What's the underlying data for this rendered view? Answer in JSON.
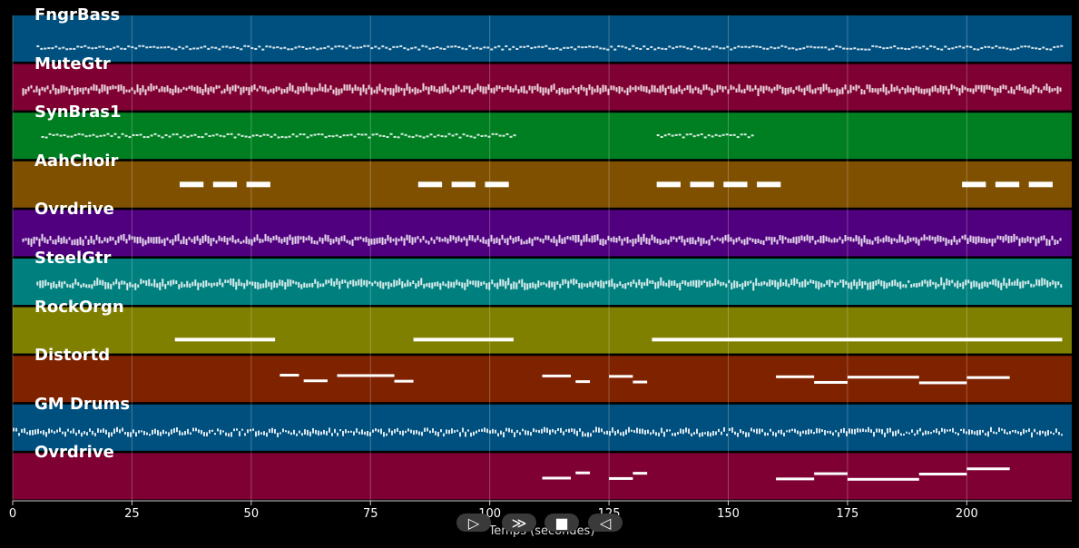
{
  "chart_data": {
    "type": "piano-roll",
    "xlabel": "Temps (secondes)",
    "xlim": [
      0,
      222
    ],
    "xticks": [
      0,
      25,
      50,
      75,
      100,
      125,
      150,
      175,
      200
    ],
    "grid": true,
    "tracks": [
      {
        "name": "FngrBass",
        "color": "#00507f",
        "pattern": "dots",
        "segments": [
          [
            5,
            220
          ]
        ],
        "level": 0.3
      },
      {
        "name": "MuteGtr",
        "color": "#7f0032",
        "pattern": "dense",
        "segments": [
          [
            2,
            220
          ]
        ],
        "level": 0.45
      },
      {
        "name": "SynBras1",
        "color": "#007f22",
        "pattern": "dots",
        "segments": [
          [
            6,
            105
          ],
          [
            135,
            155
          ]
        ],
        "level": 0.5
      },
      {
        "name": "AahChoir",
        "color": "#7f5000",
        "pattern": "blocks",
        "segments": [
          [
            35,
            40
          ],
          [
            42,
            47
          ],
          [
            49,
            54
          ],
          [
            85,
            90
          ],
          [
            92,
            97
          ],
          [
            99,
            104
          ],
          [
            135,
            140
          ],
          [
            142,
            147
          ],
          [
            149,
            154
          ],
          [
            156,
            161
          ],
          [
            199,
            204
          ],
          [
            206,
            211
          ],
          [
            213,
            218
          ]
        ],
        "level": 0.5
      },
      {
        "name": "Ovrdrive",
        "color": "#50007f",
        "pattern": "dense",
        "segments": [
          [
            2,
            220
          ]
        ],
        "level": 0.35
      },
      {
        "name": "SteelGtr",
        "color": "#007f7f",
        "pattern": "dense",
        "segments": [
          [
            5,
            220
          ]
        ],
        "level": 0.45
      },
      {
        "name": "RockOrgn",
        "color": "#7f7f00",
        "pattern": "bars",
        "segments": [
          [
            34,
            55
          ],
          [
            84,
            105
          ],
          [
            134,
            220
          ]
        ],
        "level": 0.3
      },
      {
        "name": "Distortd",
        "color": "#7f2200",
        "pattern": "melody",
        "segments": [
          [
            56,
            60
          ],
          [
            61,
            66
          ],
          [
            68,
            80
          ],
          [
            80,
            84
          ],
          [
            111,
            117
          ],
          [
            118,
            121
          ],
          [
            125,
            130
          ],
          [
            130,
            133
          ],
          [
            160,
            168
          ],
          [
            168,
            175
          ],
          [
            175,
            190
          ],
          [
            190,
            200
          ],
          [
            200,
            209
          ]
        ],
        "level": 0.5
      },
      {
        "name": "GM Drums",
        "color": "#00507f",
        "pattern": "drums",
        "segments": [
          [
            0,
            220
          ]
        ],
        "level": 0.4
      },
      {
        "name": "Ovrdrive",
        "color": "#7f0032",
        "pattern": "melody",
        "segments": [
          [
            111,
            117
          ],
          [
            118,
            121
          ],
          [
            125,
            130
          ],
          [
            130,
            133
          ],
          [
            160,
            168
          ],
          [
            168,
            175
          ],
          [
            175,
            190
          ],
          [
            190,
            200
          ],
          [
            200,
            209
          ]
        ],
        "level": 0.55
      }
    ]
  },
  "transport": {
    "play_glyph": "▷",
    "forward_glyph": "≫",
    "stop_glyph": "■",
    "back_glyph": "◁"
  }
}
